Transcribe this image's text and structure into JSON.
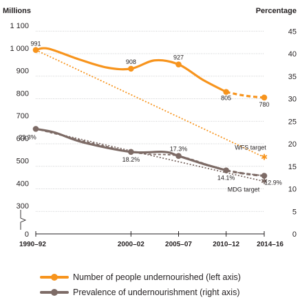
{
  "chart_data": {
    "type": "line",
    "left_axis_title": "Millions",
    "right_axis_title": "Percentage",
    "x_categories": [
      "1990–92",
      "2000–02",
      "2005–07",
      "2010–12",
      "2014–16"
    ],
    "left_ticks": [
      "0",
      "300",
      "400",
      "500",
      "600",
      "700",
      "800",
      "900",
      "1 000",
      "1 100"
    ],
    "right_ticks": [
      "0",
      "5",
      "10",
      "15",
      "20",
      "25",
      "30",
      "35",
      "40",
      "45"
    ],
    "left_axis": {
      "min": 0,
      "max": 1100,
      "break_between": [
        0,
        300
      ]
    },
    "right_axis": {
      "min": 0,
      "max": 45
    },
    "series": [
      {
        "name": "Number of people undernourished (left axis)",
        "axis": "left",
        "color": "#f7941d",
        "points": [
          {
            "x": "1990–92",
            "y": 991,
            "label": "991"
          },
          {
            "x": "2000–02",
            "y": 908,
            "label": "908"
          },
          {
            "x": "2005–07",
            "y": 927,
            "label": "927"
          },
          {
            "x": "2010–12",
            "y": 805,
            "label": "805"
          },
          {
            "x": "2014–16",
            "y": 780,
            "label": "780"
          }
        ],
        "smoothed_peaks": [
          {
            "x_year": 1992.3,
            "y": 997
          },
          {
            "x_year": 1995.5,
            "y": 950
          },
          {
            "x_year": 1998.5,
            "y": 913
          },
          {
            "x_year": 2003.5,
            "y": 945
          },
          {
            "x_year": 2008.5,
            "y": 860
          }
        ],
        "dashed_from": "2010–12"
      },
      {
        "name": "Prevalence of undernourishment (right axis)",
        "axis": "right",
        "color": "#7d6b66",
        "points": [
          {
            "x": "1990–92",
            "y": 23.3,
            "label": "23.3%"
          },
          {
            "x": "2000–02",
            "y": 18.2,
            "label": "18.2%"
          },
          {
            "x": "2005–07",
            "y": 17.3,
            "label": "17.3%"
          },
          {
            "x": "2010–12",
            "y": 14.1,
            "label": "14.1%"
          },
          {
            "x": "2014–16",
            "y": 12.9,
            "label": "12.9%"
          }
        ],
        "dashed_from": "2010–12"
      }
    ],
    "targets": [
      {
        "label": "WFS target",
        "axis": "left",
        "color": "#f7941d",
        "from": {
          "x": "1990–92",
          "y": 991
        },
        "to": {
          "x": "2014–16",
          "y": 515
        }
      },
      {
        "label": "MDG target",
        "axis": "right",
        "color": "#7d6b66",
        "from": {
          "x": "1990–92",
          "y": 23.3
        },
        "to": {
          "x": "2014–16",
          "y": 11.65
        }
      }
    ],
    "legend": [
      "Number of people undernourished (left axis)",
      "Prevalence of undernourishment (right axis)"
    ]
  }
}
